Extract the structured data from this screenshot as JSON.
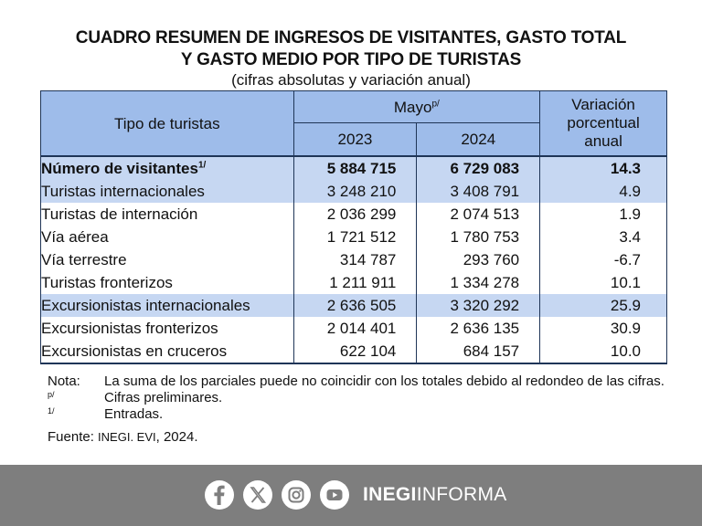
{
  "title": {
    "line1": "CUADRO RESUMEN DE INGRESOS DE VISITANTES, GASTO TOTAL",
    "line2": "Y GASTO MEDIO POR TIPO DE TURISTAS",
    "subtitle": "(cifras absolutas y variación anual)"
  },
  "table": {
    "header": {
      "tipo": "Tipo de turistas",
      "mayo": "Mayo",
      "mayo_sup": "p/",
      "year1": "2023",
      "year2": "2024",
      "variacion_l1": "Variación",
      "variacion_l2": "porcentual",
      "variacion_l3": "anual"
    },
    "rows": [
      {
        "label": "Número de visitantes",
        "sup": "1/",
        "v2023": "5 884 715",
        "v2024": "6 729 083",
        "var": "14.3"
      },
      {
        "label": "Turistas internacionales",
        "v2023": "3 248 210",
        "v2024": "3 408 791",
        "var": "4.9"
      },
      {
        "label": "Turistas de internación",
        "v2023": "2 036 299",
        "v2024": "2 074 513",
        "var": "1.9"
      },
      {
        "label": "Vía aérea",
        "v2023": "1 721 512",
        "v2024": "1 780 753",
        "var": "3.4"
      },
      {
        "label": "Vía terrestre",
        "v2023": "314 787",
        "v2024": "293 760",
        "var": "-6.7"
      },
      {
        "label": "Turistas fronterizos",
        "v2023": "1 211 911",
        "v2024": "1 334 278",
        "var": "10.1"
      },
      {
        "label": "Excursionistas internacionales",
        "v2023": "2 636 505",
        "v2024": "3 320 292",
        "var": "25.9"
      },
      {
        "label": "Excursionistas fronterizos",
        "v2023": "2 014 401",
        "v2024": "2 636 135",
        "var": "30.9"
      },
      {
        "label": "Excursionistas en cruceros",
        "v2023": "622 104",
        "v2024": "684 157",
        "var": "10.0"
      }
    ]
  },
  "notes": {
    "nota_key": "Nota:",
    "nota_text": "La suma de los parciales puede no coincidir con los totales debido al redondeo de las cifras.",
    "p_key": "p/",
    "p_text": "Cifras preliminares.",
    "one_key": "1/",
    "one_text": "Entradas.",
    "fuente_key": "Fuente:",
    "fuente_src": "INEGI. EVI",
    "fuente_year": ", 2024."
  },
  "footer": {
    "brand_bold": "INEGI",
    "brand_light": "INFORMA",
    "icons": [
      "facebook-icon",
      "x-icon",
      "instagram-icon",
      "youtube-icon"
    ],
    "background": "#7e7e7e"
  },
  "colors": {
    "header_blue": "#9ebcea",
    "highlight_blue": "#c6d7f2",
    "border": "#1f3557"
  }
}
